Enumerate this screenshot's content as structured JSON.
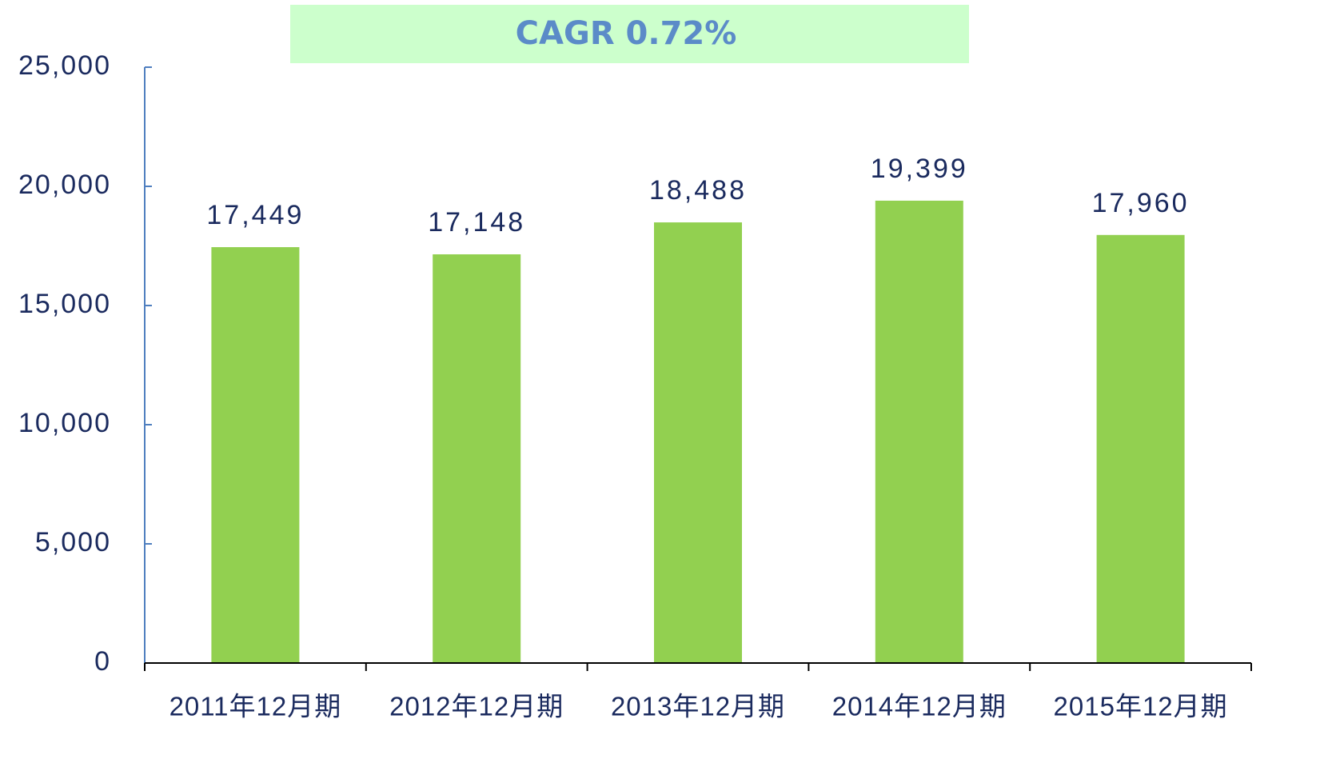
{
  "chart_data": {
    "type": "bar",
    "annotation": "CAGR 0.72%",
    "categories": [
      "2011年12月期",
      "2012年12月期",
      "2013年12月期",
      "2014年12月期",
      "2015年12月期"
    ],
    "values": [
      17449,
      17148,
      18488,
      19399,
      17960
    ],
    "value_labels": [
      "17,449",
      "17,148",
      "18,488",
      "19,399",
      "17,960"
    ],
    "color": "#92d050",
    "ylim": [
      0,
      25000
    ],
    "yticks": [
      0,
      {
        "value": 5000,
        "label": "5,000"
      },
      {
        "value": 10000,
        "label": "10,000"
      },
      {
        "value": 15000,
        "label": "15,000"
      },
      {
        "value": 20000,
        "label": "20,000"
      },
      {
        "value": 25000,
        "label": "25,000"
      }
    ],
    "grid": false
  }
}
